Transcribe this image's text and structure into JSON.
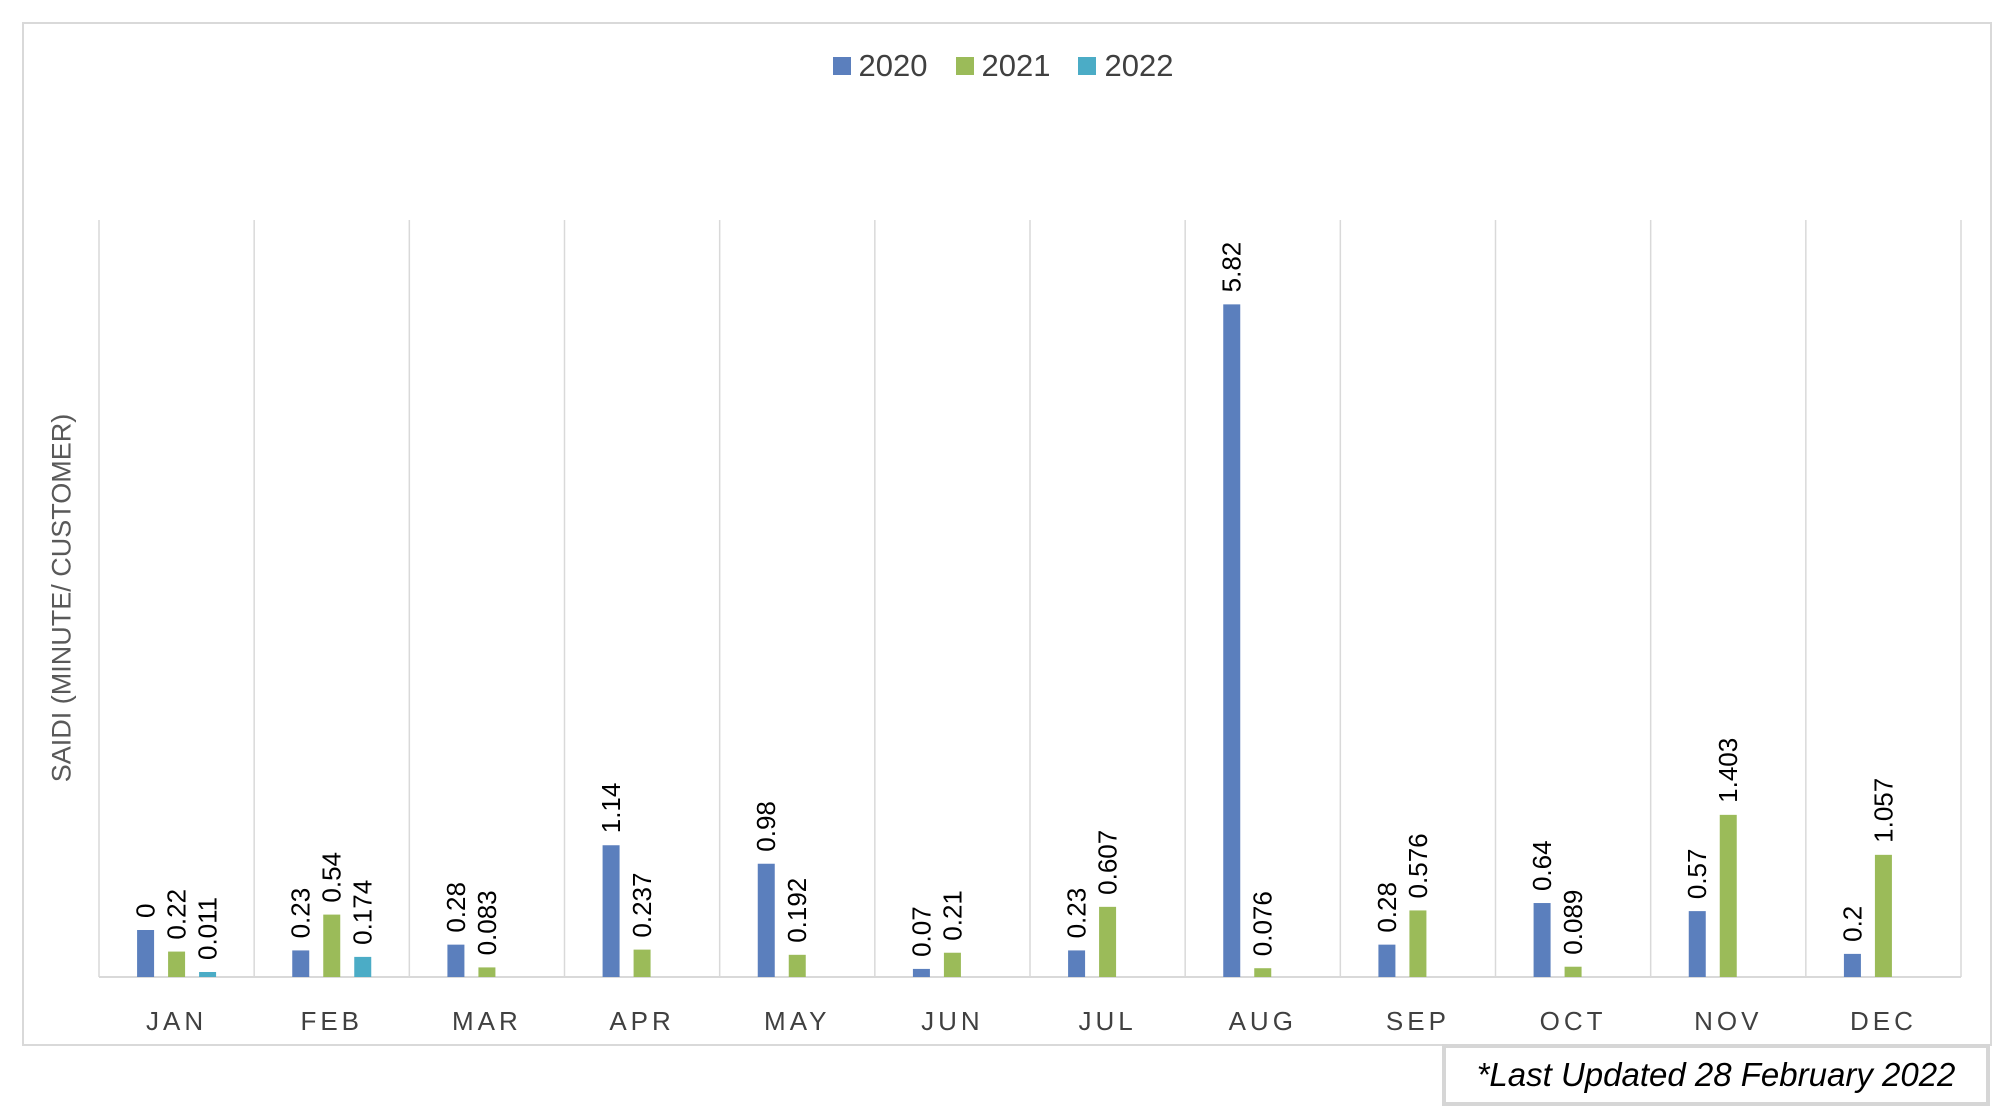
{
  "chart_data": {
    "type": "bar",
    "title": "",
    "xlabel": "",
    "ylabel": "SAIDI (MINUTE/ CUSTOMER)",
    "categories": [
      "JAN",
      "FEB",
      "MAR",
      "APR",
      "MAY",
      "JUN",
      "JUL",
      "AUG",
      "SEP",
      "OCT",
      "NOV",
      "DEC"
    ],
    "series": [
      {
        "name": "2020",
        "color": "#5b7fbd",
        "values": [
          0,
          0.23,
          0.28,
          1.14,
          0.98,
          0.07,
          0.23,
          5.82,
          0.28,
          0.64,
          0.57,
          0.2
        ],
        "labels": [
          "0",
          "0.23",
          "0.28",
          "1.14",
          "0.98",
          "0.07",
          "0.23",
          "5.82",
          "0.28",
          "0.64",
          "0.57",
          "0.2"
        ]
      },
      {
        "name": "2021",
        "color": "#9bbb59",
        "values": [
          0.22,
          0.54,
          0.083,
          0.237,
          0.192,
          0.21,
          0.607,
          0.076,
          0.576,
          0.089,
          1.403,
          1.057
        ],
        "labels": [
          "0.22",
          "0.54",
          "0.083",
          "0.237",
          "0.192",
          "0.21",
          "0.607",
          "0.076",
          "0.576",
          "0.089",
          "1.403",
          "1.057"
        ]
      },
      {
        "name": "2022",
        "color": "#4bacc6",
        "values": [
          0.011,
          0.174,
          null,
          null,
          null,
          null,
          null,
          null,
          null,
          null,
          null,
          null
        ],
        "labels": [
          "0.011",
          "0.174",
          null,
          null,
          null,
          null,
          null,
          null,
          null,
          null,
          null,
          null
        ]
      }
    ],
    "ylim": [
      0,
      7
    ],
    "legend_position": "top-center",
    "grid": "vertical category separators"
  },
  "footnote": "*Last Updated 28 February 2022",
  "colors": {
    "axis": "#d9d9d9",
    "grid": "#d9d9d9",
    "label": "#000000",
    "tick": "#404040"
  }
}
